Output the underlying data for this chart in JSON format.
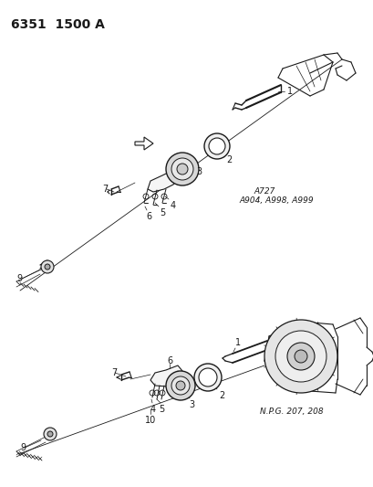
{
  "title": "6351  1500 A",
  "title_fontsize": 10,
  "background_color": "#ffffff",
  "text_color": "#1a1a1a",
  "annotation1": "A727",
  "annotation2": "A904, A998, A999",
  "annotation3": "N.P.G. 207, 208",
  "fig_width": 4.1,
  "fig_height": 5.33,
  "dpi": 100
}
